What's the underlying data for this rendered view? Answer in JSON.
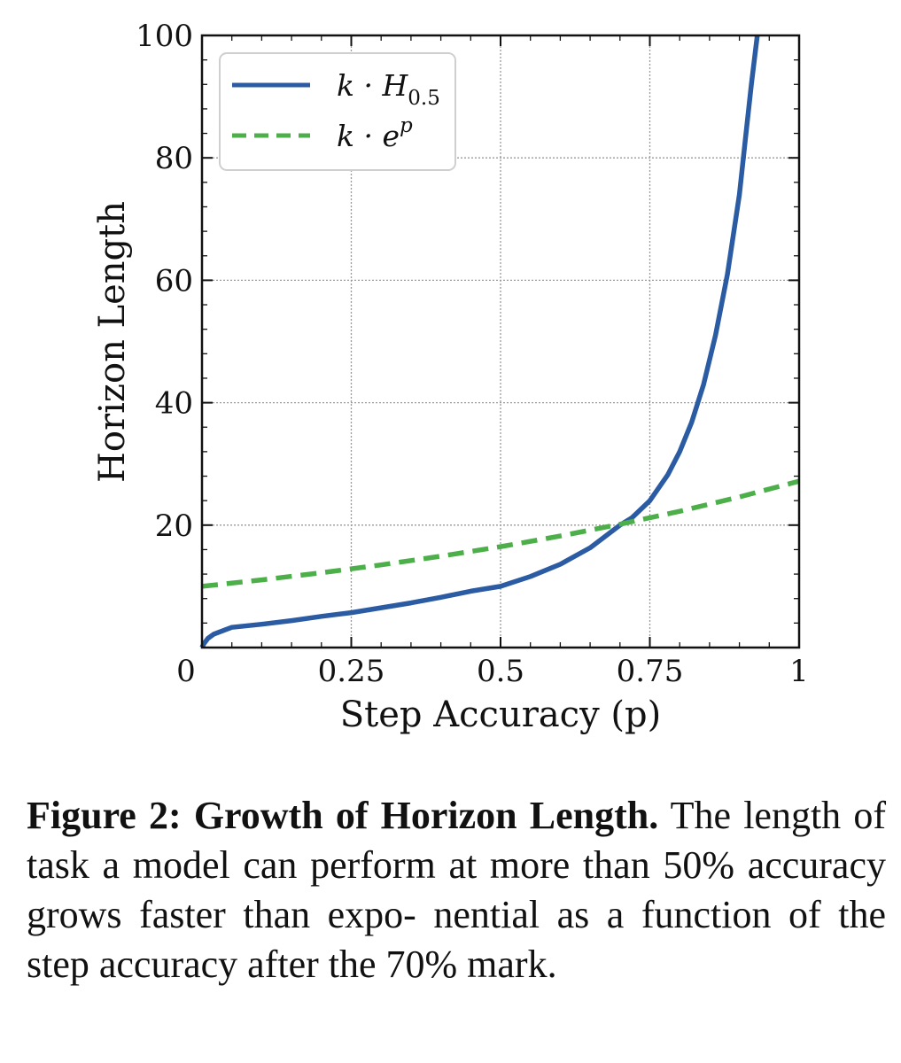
{
  "chart_data": {
    "type": "line",
    "xlabel": "Step Accuracy (p)",
    "ylabel": "Horizon Length",
    "xlim": [
      0,
      1
    ],
    "ylim": [
      0,
      100
    ],
    "x_ticks": [
      {
        "value": 0,
        "label": "0"
      },
      {
        "value": 0.25,
        "label": "0.25"
      },
      {
        "value": 0.5,
        "label": "0.5"
      },
      {
        "value": 0.75,
        "label": "0.75"
      },
      {
        "value": 1,
        "label": "1"
      }
    ],
    "y_ticks": [
      {
        "value": 20,
        "label": "20"
      },
      {
        "value": 40,
        "label": "40"
      },
      {
        "value": 60,
        "label": "60"
      },
      {
        "value": 80,
        "label": "80"
      },
      {
        "value": 100,
        "label": "100"
      }
    ],
    "grid": true,
    "legend_position": "top-left",
    "series": [
      {
        "name": "k · H0.5",
        "legend_base": "k · H",
        "legend_sub": "0.5",
        "color": "#2a5ba3",
        "style": "solid",
        "x": [
          0.0,
          0.003,
          0.01,
          0.02,
          0.05,
          0.1,
          0.15,
          0.2,
          0.25,
          0.3,
          0.35,
          0.4,
          0.45,
          0.5,
          0.55,
          0.6,
          0.65,
          0.7,
          0.72,
          0.75,
          0.78,
          0.8,
          0.82,
          0.84,
          0.86,
          0.88,
          0.9,
          0.91,
          0.92,
          0.93
        ],
        "y": [
          0.0,
          0.6,
          1.5,
          2.2,
          3.3,
          3.8,
          4.4,
          5.1,
          5.7,
          6.5,
          7.3,
          8.2,
          9.2,
          10.0,
          11.6,
          13.6,
          16.3,
          20.0,
          21.2,
          24.0,
          28.2,
          32.0,
          36.8,
          43.0,
          51.0,
          61.0,
          74.0,
          83.0,
          92.0,
          100.0
        ]
      },
      {
        "name": "k · e^p",
        "legend_base": "k · e",
        "legend_sup": "p",
        "color": "#4daf4a",
        "style": "dashed",
        "x": [
          0.0,
          0.1,
          0.2,
          0.3,
          0.4,
          0.5,
          0.6,
          0.7,
          0.8,
          0.9,
          1.0
        ],
        "y": [
          10.0,
          11.05,
          12.21,
          13.5,
          14.92,
          16.49,
          18.22,
          20.14,
          22.26,
          24.6,
          27.18
        ]
      }
    ]
  },
  "caption": {
    "label": "Figure 2: Growth of Horizon Length.",
    "text_html": " The length of task a model can perform at more than 50% accuracy grows faster than expo- nential as a function of the step accuracy after the 70% mark."
  }
}
